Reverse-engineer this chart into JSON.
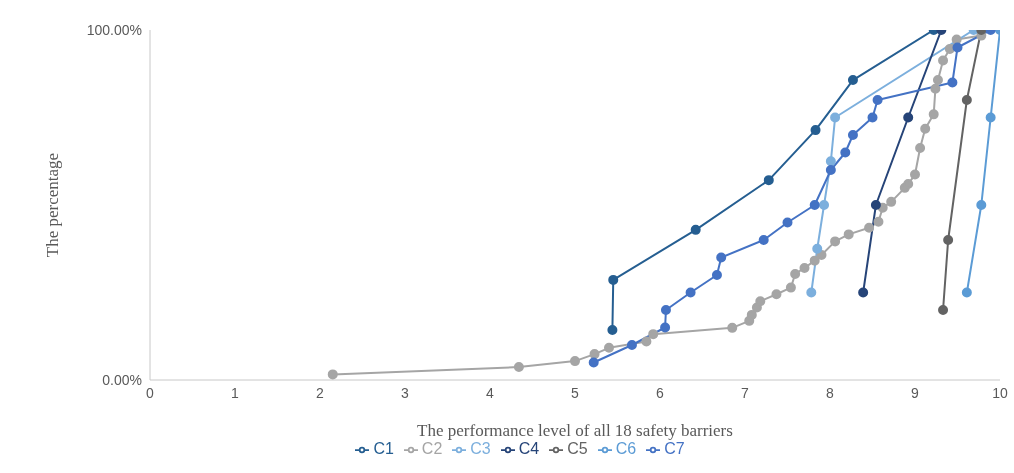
{
  "chart_data": {
    "type": "line",
    "xlabel": "The performance level of  all 18 safety barriers",
    "ylabel": "The percentage",
    "xlim": [
      0,
      10
    ],
    "xticks": [
      0,
      1,
      2,
      3,
      4,
      5,
      6,
      7,
      8,
      9,
      10
    ],
    "ylim": [
      0,
      100
    ],
    "yticks": [
      {
        "value": 0,
        "label": "0.00%"
      },
      {
        "value": 100,
        "label": "100.00%"
      }
    ],
    "grid": false,
    "legend": "bottom",
    "marker": "circle",
    "line_style": "solid",
    "series": [
      {
        "name": "C1",
        "color": "#255e91",
        "x": [
          5.44,
          5.45,
          6.42,
          7.28,
          7.83,
          8.27,
          9.22
        ],
        "values": [
          14.3,
          28.6,
          42.9,
          57.1,
          71.4,
          85.7,
          100
        ]
      },
      {
        "name": "C2",
        "color": "#a5a5a5",
        "x": [
          2.15,
          4.34,
          5.0,
          5.23,
          5.4,
          5.84,
          5.92,
          6.85,
          7.05,
          7.08,
          7.14,
          7.18,
          7.37,
          7.54,
          7.59,
          7.7,
          7.82,
          7.9,
          8.06,
          8.22,
          8.46,
          8.57,
          8.62,
          8.72,
          8.88,
          8.92,
          9.0,
          9.06,
          9.12,
          9.22,
          9.24,
          9.27,
          9.33,
          9.41,
          9.49,
          9.78
        ],
        "values": [
          1.6,
          3.7,
          5.4,
          7.4,
          9.2,
          11,
          13.1,
          14.9,
          16.9,
          18.6,
          20.7,
          22.5,
          24.5,
          26.4,
          30.3,
          32,
          34.1,
          35.7,
          39.6,
          41.6,
          43.5,
          45.2,
          49.2,
          50.9,
          54.9,
          56,
          58.7,
          66.3,
          71.8,
          75.9,
          83.2,
          85.7,
          91.3,
          94.6,
          97.3,
          98.4
        ]
      },
      {
        "name": "C3",
        "color": "#7cafdd",
        "x": [
          7.78,
          7.85,
          7.93,
          8.01,
          8.06,
          9.69
        ],
        "values": [
          25,
          37.5,
          50,
          62.5,
          75,
          100
        ]
      },
      {
        "name": "C4",
        "color": "#264478",
        "x": [
          8.39,
          8.54,
          8.92,
          9.31
        ],
        "values": [
          25,
          50,
          75,
          100
        ]
      },
      {
        "name": "C5",
        "color": "#636363",
        "x": [
          9.33,
          9.39,
          9.61,
          9.78
        ],
        "values": [
          20,
          40,
          80,
          100
        ]
      },
      {
        "name": "C6",
        "color": "#5b9bd5",
        "x": [
          9.61,
          9.78,
          9.89,
          10.0
        ],
        "values": [
          25,
          50,
          75,
          100
        ]
      },
      {
        "name": "C7",
        "color": "#4472c4",
        "x": [
          5.22,
          5.67,
          6.06,
          6.07,
          6.36,
          6.67,
          6.72,
          7.22,
          7.5,
          7.82,
          8.01,
          8.18,
          8.27,
          8.5,
          8.56,
          9.44,
          9.5,
          9.89
        ],
        "values": [
          5,
          10,
          15,
          20,
          25,
          30,
          35,
          40,
          45,
          50,
          60,
          65,
          70,
          75,
          80,
          85,
          95,
          100
        ]
      }
    ]
  }
}
